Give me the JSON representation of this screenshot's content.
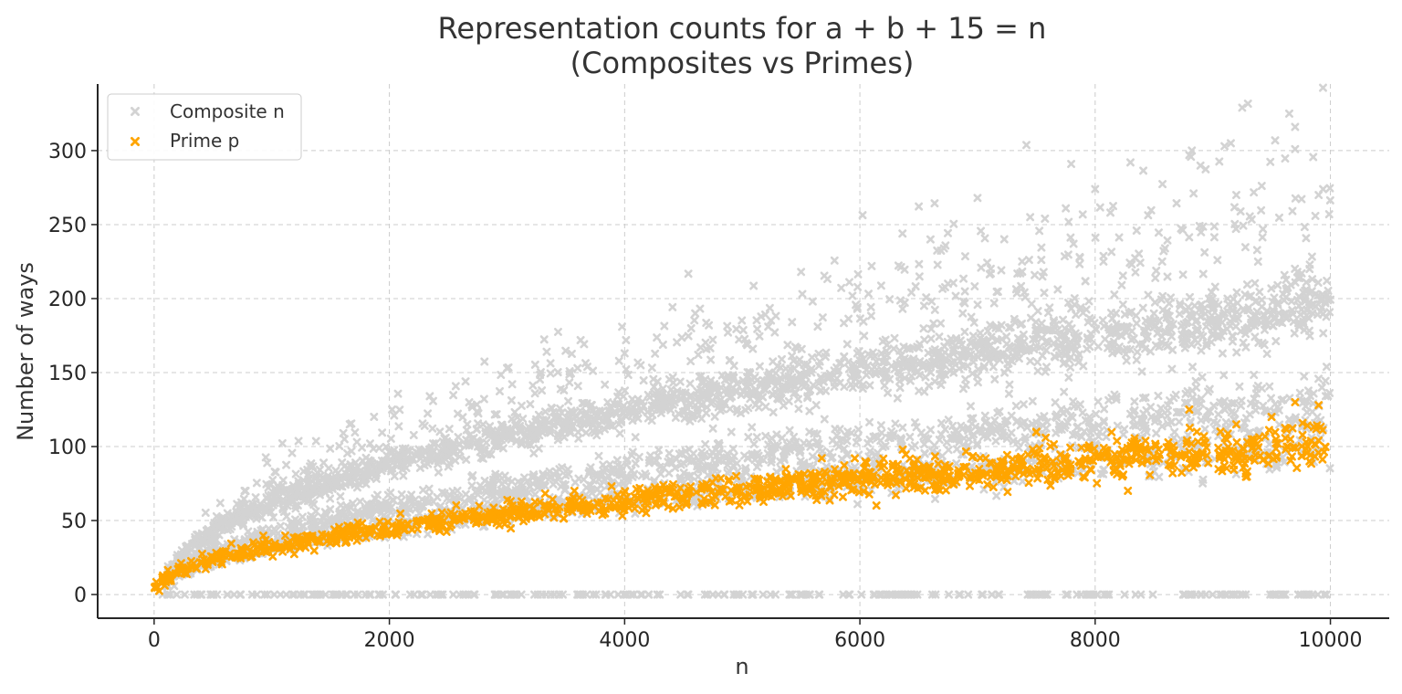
{
  "chart_data": {
    "type": "scatter",
    "title": "Representation counts for a + b + 15 = n",
    "subtitle": "(Composites vs Primes)",
    "xlabel": "n",
    "ylabel": "Number of ways",
    "xlim": [
      -480,
      10500
    ],
    "ylim": [
      -16,
      345
    ],
    "x_ticks": [
      0,
      2000,
      4000,
      6000,
      8000,
      10000
    ],
    "y_ticks": [
      0,
      50,
      100,
      150,
      200,
      250,
      300
    ],
    "grid": true,
    "legend_position": "top-left",
    "marker": "x",
    "series": [
      {
        "name": "Composite n",
        "color": "#d3d3d3",
        "bands": [
          {
            "x_range": [
              0,
              10000
            ],
            "y_at_start": 0,
            "y_at_end": 0,
            "spread": 0,
            "count": 260,
            "seed": 1
          },
          {
            "x_range": [
              100,
              10000
            ],
            "y_at_start": 4,
            "y_at_end": 195,
            "spread": 12,
            "count": 1700,
            "seed": 2
          },
          {
            "x_range": [
              100,
              10000
            ],
            "y_at_start": 3,
            "y_at_end": 130,
            "spread": 12,
            "count": 1100,
            "seed": 3
          },
          {
            "x_range": [
              300,
              10000
            ],
            "y_at_start": 8,
            "y_at_end": 250,
            "spread": 35,
            "count": 500,
            "seed": 4
          },
          {
            "x_range": [
              100,
              10000
            ],
            "y_at_start": 2,
            "y_at_end": 100,
            "spread": 8,
            "count": 600,
            "seed": 5
          }
        ],
        "points": [
          [
            9250,
            329
          ],
          [
            9650,
            325
          ],
          [
            9700,
            316
          ],
          [
            8800,
            297
          ],
          [
            8300,
            292
          ],
          [
            9100,
            303
          ],
          [
            9700,
            301
          ],
          [
            7000,
            268
          ],
          [
            8000,
            274
          ],
          [
            9200,
            270
          ],
          [
            5500,
            218
          ],
          [
            6100,
            222
          ],
          [
            4600,
            190
          ],
          [
            3000,
            153
          ],
          [
            3600,
            153
          ],
          [
            4000,
            163
          ],
          [
            2300,
            114
          ],
          [
            2700,
            128
          ],
          [
            9900,
            270
          ],
          [
            6600,
            240
          ]
        ]
      },
      {
        "name": "Prime p",
        "color": "#ffa500",
        "bands": [
          {
            "x_range": [
              0,
              10000
            ],
            "y_at_start": 1,
            "y_at_end": 100,
            "spread": 8,
            "count": 1229,
            "seed": 7
          }
        ],
        "points": [
          [
            9700,
            130
          ],
          [
            9900,
            128
          ],
          [
            9500,
            120
          ],
          [
            8800,
            125
          ],
          [
            9200,
            115
          ],
          [
            7500,
            110
          ]
        ]
      }
    ]
  }
}
